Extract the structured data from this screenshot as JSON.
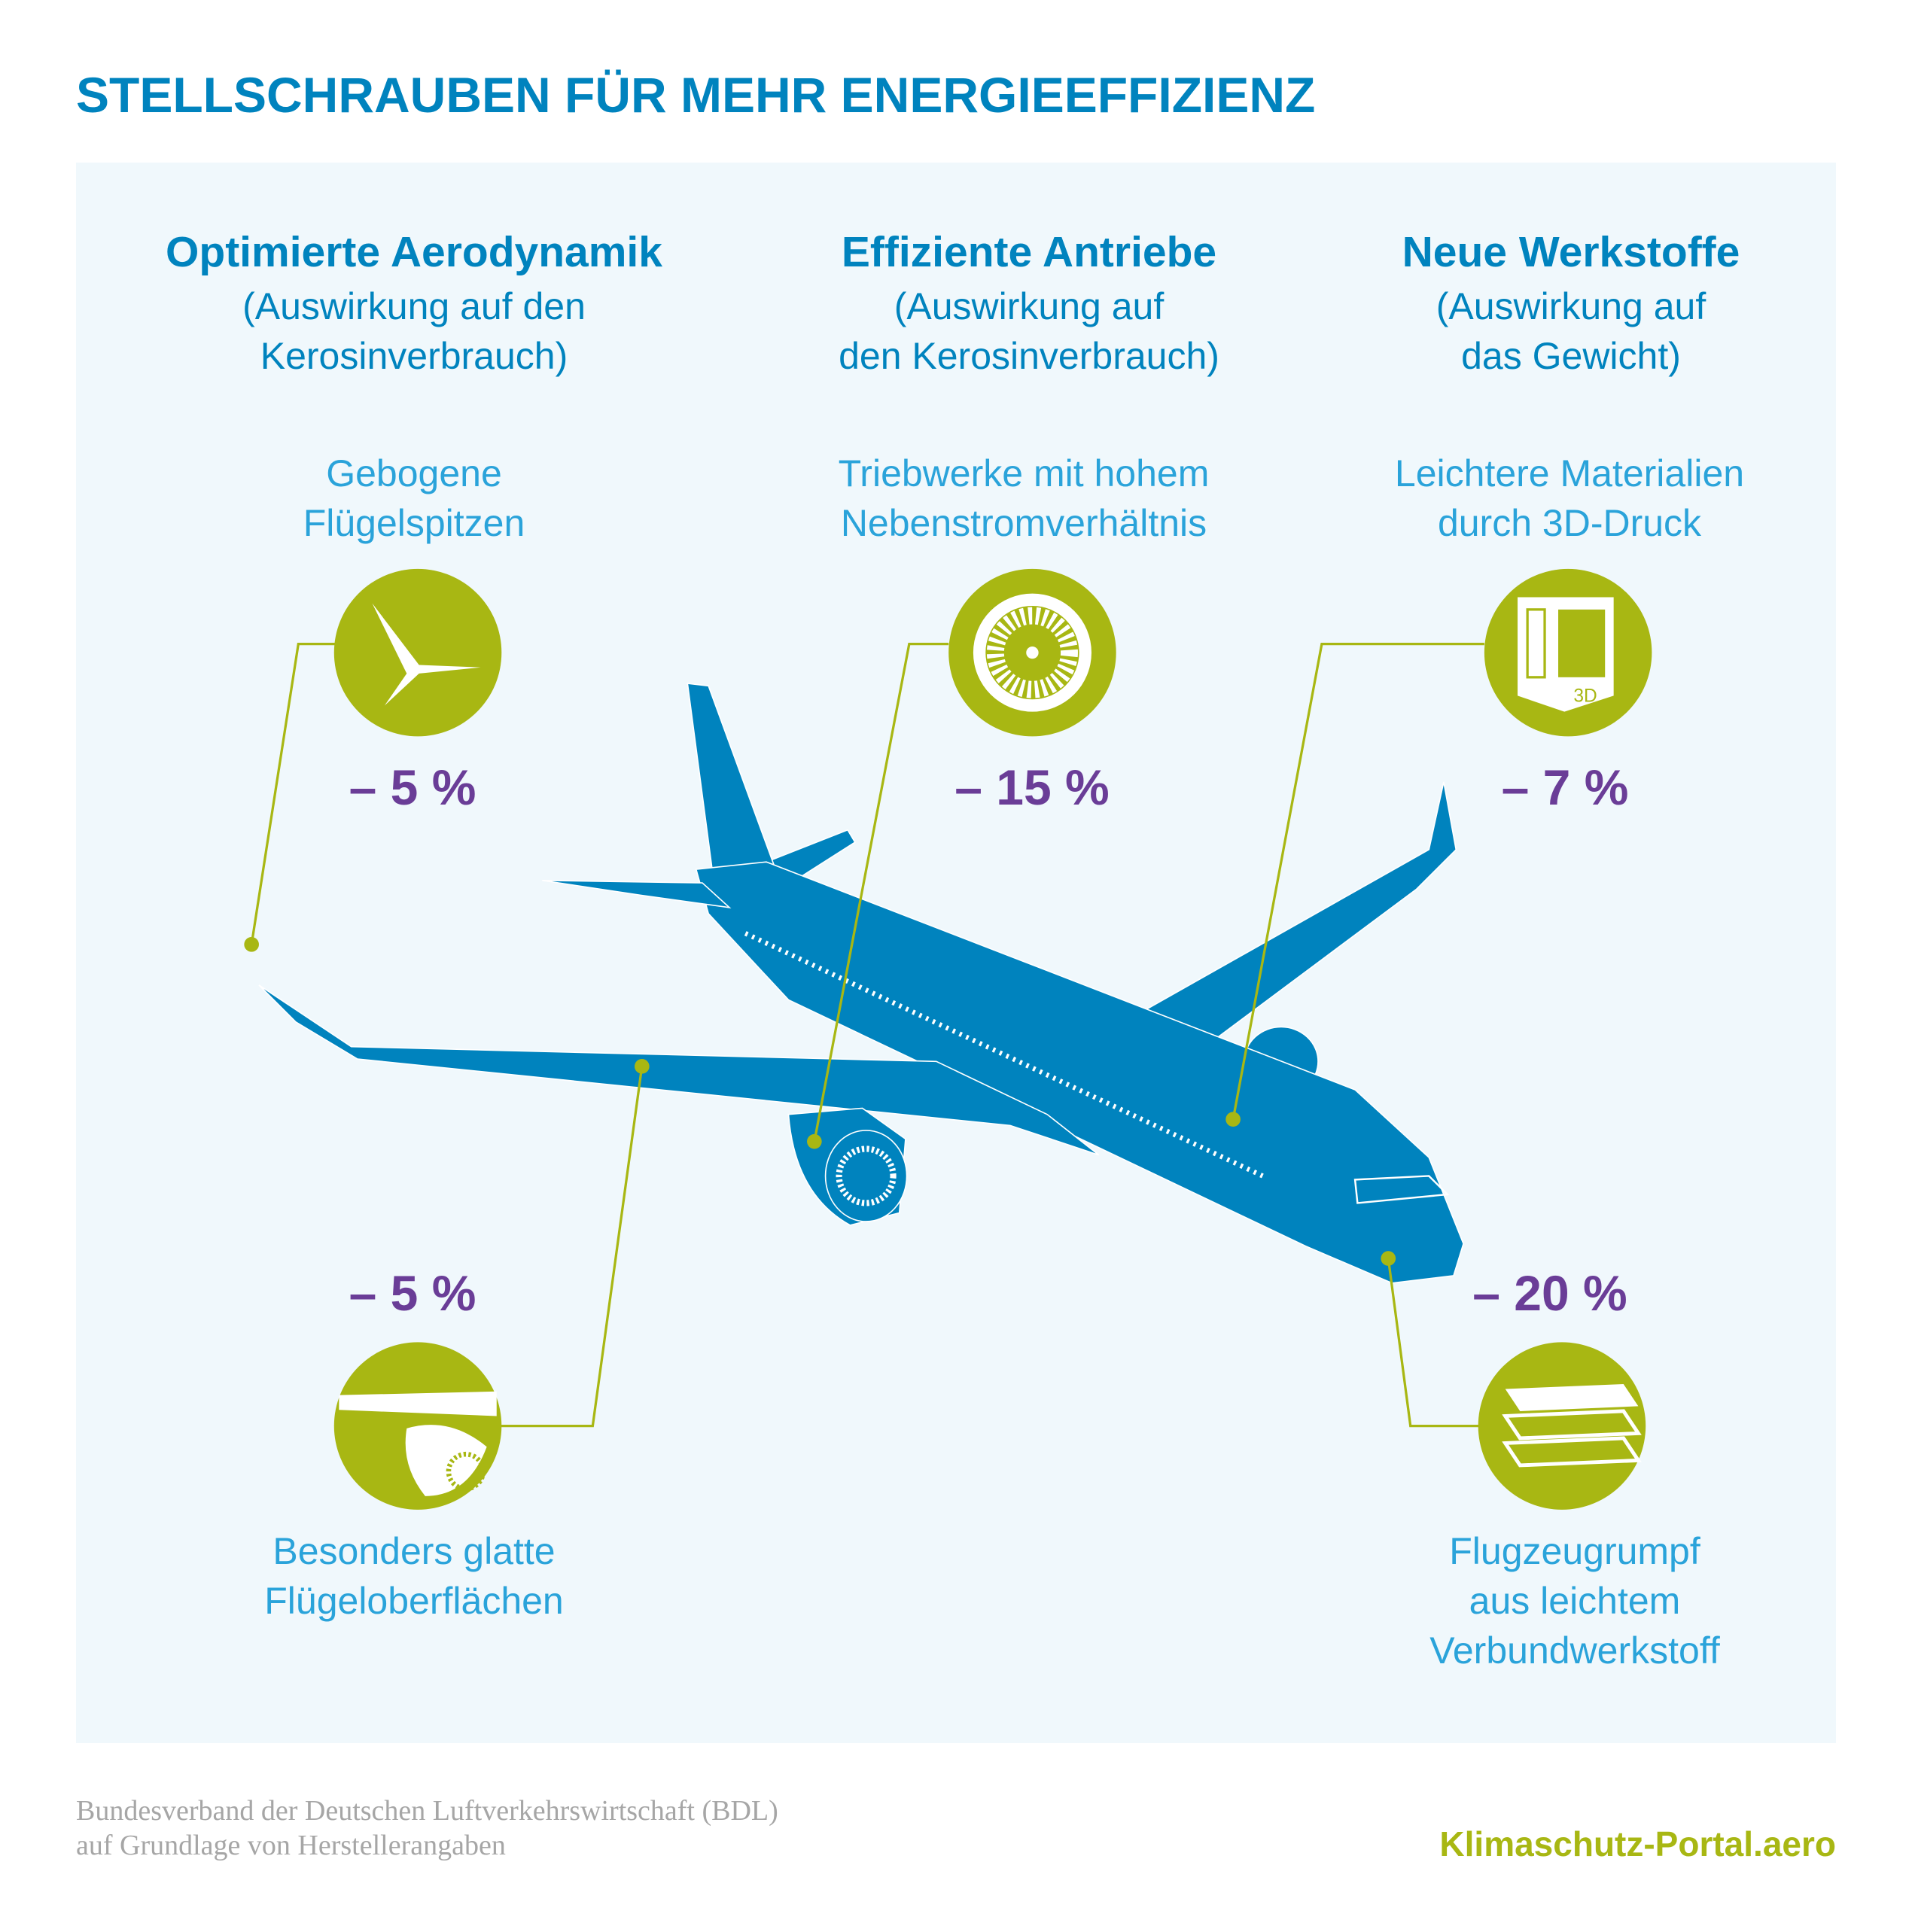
{
  "title": "STELLSCHRAUBEN FÜR MEHR ENERGIEEFFIZIENZ",
  "colors": {
    "primary": "#0083be",
    "accent_green": "#a8b713",
    "percent_purple": "#6a3d97",
    "feature_blue": "#2aa3da",
    "panel": "#f0f8fc"
  },
  "columns": [
    {
      "heading": "Optimierte Aerodynamik",
      "sub": [
        "(Auswirkung auf den",
        "Kerosinverbrauch)"
      ]
    },
    {
      "heading": "Effiziente Antriebe",
      "sub": [
        "(Auswirkung auf",
        "den Kerosinverbrauch)"
      ]
    },
    {
      "heading": "Neue Werkstoffe",
      "sub": [
        "(Auswirkung auf",
        "das Gewicht)"
      ]
    }
  ],
  "features": [
    {
      "label": [
        "Gebogene",
        "Flügelspitzen"
      ],
      "value": "– 5 %",
      "icon": "winglet-icon"
    },
    {
      "label": [
        "Triebwerke mit hohem",
        "Nebenstromverhältnis"
      ],
      "value": "– 15 %",
      "icon": "turbofan-icon"
    },
    {
      "label": [
        "Leichtere Materialien",
        "durch 3D-Druck"
      ],
      "value": "– 7 %",
      "icon": "3d-printer-icon",
      "icon_text": "3D"
    },
    {
      "label": [
        "Besonders glatte",
        "Flügeloberflächen"
      ],
      "value": "– 5 %",
      "icon": "wing-surface-icon"
    },
    {
      "label": [
        "Flugzeugrumpf",
        "aus leichtem",
        "Verbundwerkstoff"
      ],
      "value": "– 20 %",
      "icon": "layers-icon"
    }
  ],
  "footer": {
    "source": [
      "Bundesverband der Deutschen Luftverkehrswirtschaft (BDL)",
      "auf Grundlage von Herstellerangaben"
    ],
    "brand": "Klimaschutz-Portal.aero"
  }
}
